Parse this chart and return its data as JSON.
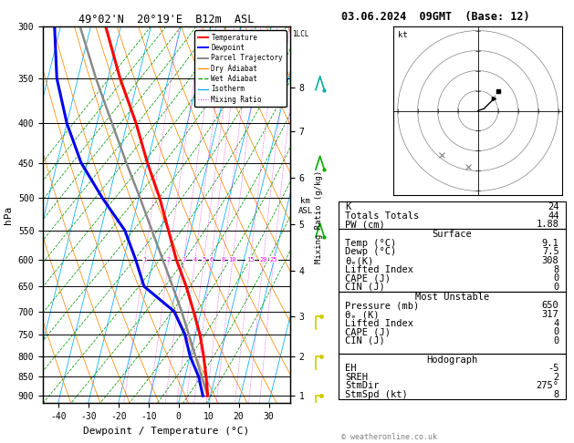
{
  "title_left": "49°02'N  20°19'E  B12m  ASL",
  "title_right": "03.06.2024  09GMT  (Base: 12)",
  "xlabel": "Dewpoint / Temperature (°C)",
  "ylabel_left": "hPa",
  "pressure_levels": [
    300,
    350,
    400,
    450,
    500,
    550,
    600,
    650,
    700,
    750,
    800,
    850,
    900
  ],
  "tmin": -45,
  "tmax": 37,
  "pmin": 300,
  "pmax": 920,
  "isotherm_color": "#00aaff",
  "dry_adiabat_color": "#ff8800",
  "wet_adiabat_color": "#009900",
  "mixing_ratio_color": "#ee00ee",
  "temperature_color": "#ff0000",
  "dewpoint_color": "#0000ee",
  "parcel_color": "#888888",
  "km_asl_ticks": [
    1,
    2,
    3,
    4,
    5,
    6,
    7,
    8
  ],
  "km_asl_pressures": [
    900,
    800,
    710,
    620,
    540,
    470,
    410,
    360
  ],
  "stats": {
    "K": 24,
    "Totals_Totals": 44,
    "PW_cm": 1.88,
    "Surface_Temp": 9.1,
    "Surface_Dewp": 7.5,
    "theta_e_K": 308,
    "Lifted_Index": 8,
    "CAPE_J": 0,
    "CIN_J": 0,
    "MU_Pressure_mb": 650,
    "MU_theta_e_K": 317,
    "MU_Lifted_Index": 4,
    "MU_CAPE_J": 0,
    "MU_CIN_J": 0,
    "Hodograph_EH": -5,
    "SREH": 2,
    "StmDir": 275,
    "StmSpd_kt": 8
  },
  "sounding_p": [
    900,
    850,
    800,
    750,
    700,
    650,
    600,
    550,
    500,
    450,
    400,
    350,
    300
  ],
  "sounding_T": [
    9.1,
    7.0,
    4.5,
    1.5,
    -2.5,
    -7.0,
    -12.5,
    -17.5,
    -23.0,
    -30.0,
    -37.0,
    -46.0,
    -55.0
  ],
  "sounding_Td": [
    7.5,
    4.5,
    0.0,
    -3.5,
    -9.0,
    -21.0,
    -26.0,
    -32.0,
    -42.0,
    -52.0,
    -60.0,
    -67.0,
    -72.0
  ],
  "parcel_p": [
    900,
    850,
    800,
    750,
    700,
    650,
    600,
    550,
    500,
    450,
    400,
    350,
    300
  ],
  "parcel_T": [
    9.1,
    5.5,
    1.8,
    -2.2,
    -6.5,
    -11.5,
    -17.0,
    -23.0,
    -29.5,
    -37.0,
    -45.0,
    -54.0,
    -63.5
  ]
}
